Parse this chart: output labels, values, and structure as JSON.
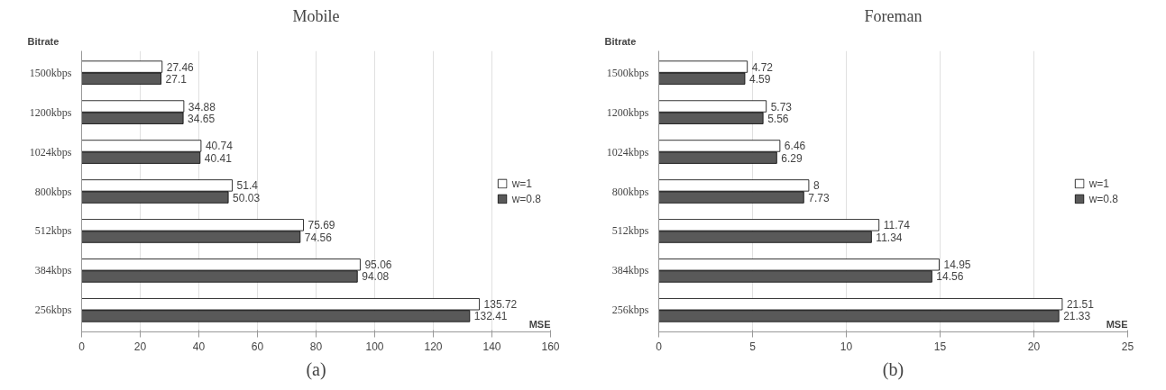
{
  "chart_data": [
    {
      "type": "bar",
      "orientation": "horizontal",
      "title": "Mobile",
      "ylabel": "Bitrate",
      "xlabel": "MSE",
      "annotations": [
        "(a)"
      ],
      "categories": [
        "1500kbps",
        "1200kbps",
        "1024kbps",
        "800kbps",
        "512kbps",
        "384kbps",
        "256kbps"
      ],
      "series": [
        {
          "name": "w=1",
          "color": "#ffffff",
          "values": [
            27.46,
            34.88,
            40.74,
            51.4,
            75.69,
            95.06,
            135.72
          ]
        },
        {
          "name": "w=0.8",
          "color": "#595959",
          "values": [
            27.1,
            34.65,
            40.41,
            50.03,
            74.56,
            94.08,
            132.41
          ]
        }
      ],
      "xlim": [
        0,
        160
      ],
      "xticks": [
        0,
        20,
        40,
        60,
        80,
        100,
        120,
        140,
        160
      ],
      "grid": "x",
      "legend": "right",
      "data_labels": true
    },
    {
      "type": "bar",
      "orientation": "horizontal",
      "title": "Foreman",
      "ylabel": "Bitrate",
      "xlabel": "MSE",
      "annotations": [
        "(b)"
      ],
      "categories": [
        "1500kbps",
        "1200kbps",
        "1024kbps",
        "800kbps",
        "512kbps",
        "384kbps",
        "256kbps"
      ],
      "series": [
        {
          "name": "w=1",
          "color": "#ffffff",
          "values": [
            4.72,
            5.73,
            6.46,
            8,
            11.74,
            14.95,
            21.51
          ]
        },
        {
          "name": "w=0.8",
          "color": "#595959",
          "values": [
            4.59,
            5.56,
            6.29,
            7.73,
            11.34,
            14.56,
            21.33
          ]
        }
      ],
      "xlim": [
        0,
        25
      ],
      "xticks": [
        0,
        5,
        10,
        15,
        20,
        25
      ],
      "grid": "x",
      "legend": "right",
      "data_labels": true
    }
  ]
}
